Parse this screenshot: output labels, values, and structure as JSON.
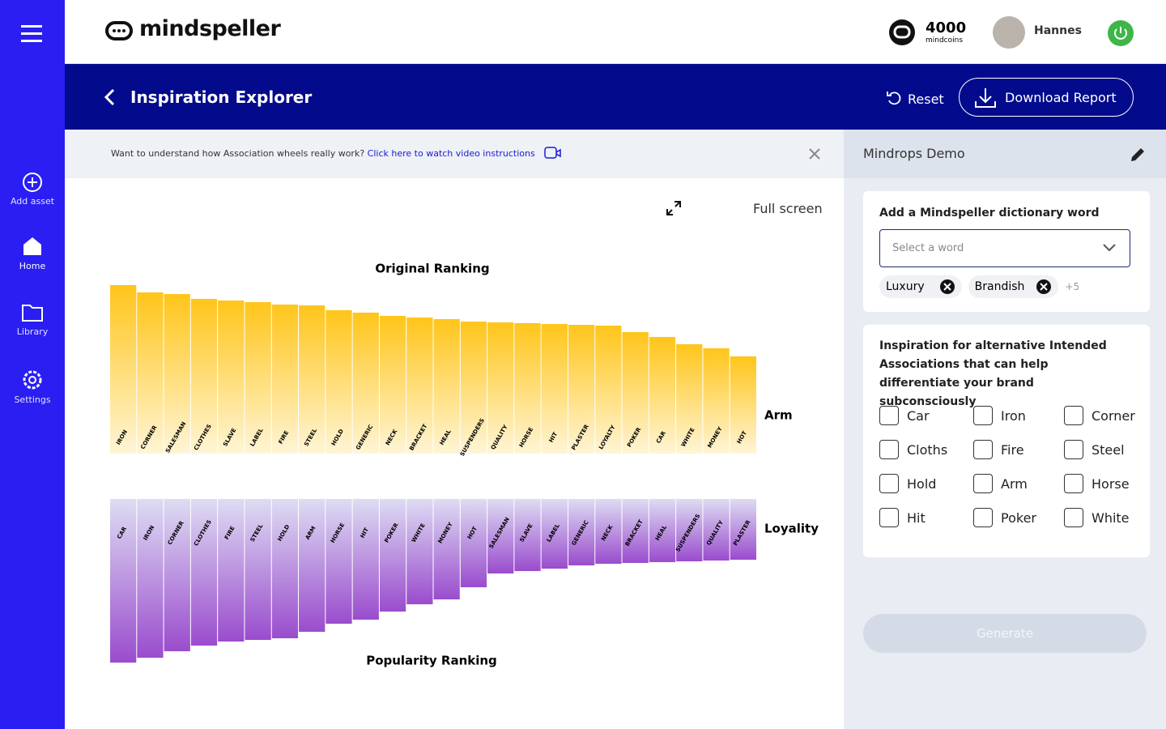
{
  "sidebar": {
    "items": [
      "Add asset",
      "Home",
      "Library",
      "Settings"
    ]
  },
  "header": {
    "logo": "mindspeller",
    "coins": 4000,
    "coins_unit": "mindcoins",
    "user": "Hannes"
  },
  "banner": {
    "title": "Inspiration Explorer",
    "reset": "Reset",
    "download": "Download Report"
  },
  "info": {
    "text": "Want to understand how Association wheels really work?",
    "link": "Click here to watch video instructions"
  },
  "canvas": {
    "fullscreen": "Full screen",
    "original": {
      "title": "Original Ranking",
      "label": "Arm",
      "words": [
        "IRON",
        "CORNER",
        "SALESMAN",
        "CLOTHES",
        "SLAVE",
        "LABEL",
        "FIRE",
        "STEEL",
        "HOLD",
        "GENERIC",
        "NECK",
        "BRACKET",
        "HEAL",
        "SUSPENDERS",
        "QUALITY",
        "HORSE",
        "HIT",
        "PLASTER",
        "LOYALTY",
        "POKER",
        "CAR",
        "WHITE",
        "MONEY",
        "HOT"
      ],
      "scores": [
        208,
        199,
        197,
        191,
        189,
        187,
        184,
        183,
        177,
        174,
        170,
        168,
        166,
        163,
        162,
        161,
        160,
        159,
        158,
        150,
        144,
        135,
        130,
        120
      ]
    },
    "popularity": {
      "title": "Popularity Ranking",
      "label": "Loyality",
      "words": [
        "CAR",
        "IRON",
        "CORNER",
        "CLOTHES",
        "FIRE",
        "STEEL",
        "HOLD",
        "ARM",
        "HORSE",
        "HIT",
        "POKER",
        "WHITE",
        "MONEY",
        "HOT",
        "SALESMAN",
        "SLAVE",
        "LABEL",
        "GENERIC",
        "NECK",
        "BRACKET",
        "HEAL",
        "SUSPENDERS",
        "QUALITY",
        "PLASTER"
      ],
      "scores": [
        202,
        196,
        188,
        181,
        176,
        174,
        172,
        164,
        154,
        149,
        139,
        130,
        124,
        109,
        92,
        89,
        86,
        82,
        80,
        79,
        78,
        77,
        76,
        75
      ]
    }
  },
  "panel": {
    "title": "Mindrops Demo",
    "dictionary": {
      "heading": "Add a Mindspeller dictionary word",
      "placeholder": "Select a word",
      "tags": [
        "Luxury",
        "Brandish"
      ],
      "more": "+5"
    },
    "inspiration": {
      "heading": "Inspiration for alternative Intended Associations that can help  differentiate your brand subconsciously",
      "options": [
        "Car",
        "Iron",
        "Corner",
        "Cloths",
        "Fire",
        "Steel",
        "Hold",
        "Arm",
        "Horse",
        "Hit",
        "Poker",
        "White"
      ]
    },
    "generate": "Generate"
  }
}
